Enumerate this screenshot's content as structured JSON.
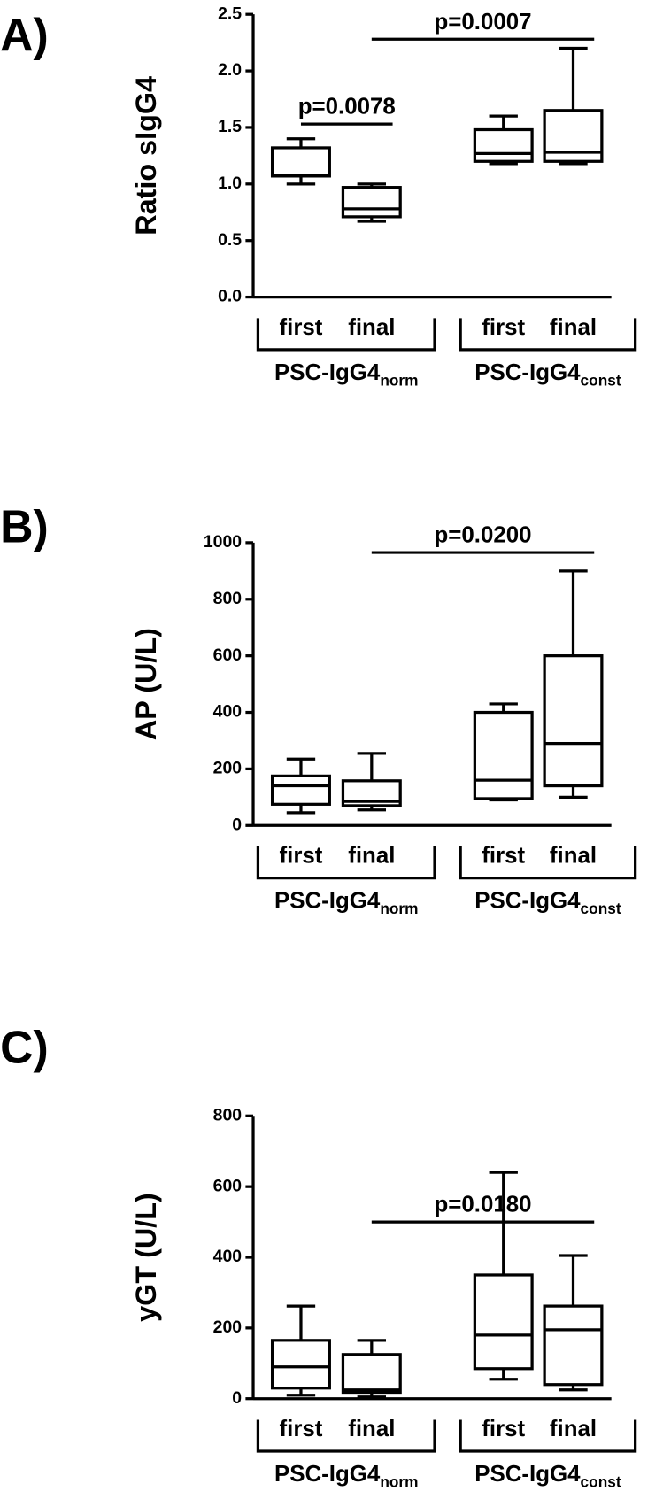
{
  "chart_data": [
    {
      "type": "box",
      "panel_label": "A)",
      "y_label": "Ratio sIgG4",
      "categories": [
        "first",
        "final",
        "first",
        "final"
      ],
      "groups": [
        {
          "label": "PSC-IgG4",
          "sub": "norm"
        },
        {
          "label": "PSC-IgG4",
          "sub": "const"
        }
      ],
      "boxes": [
        {
          "min": 1.0,
          "q1": 1.07,
          "median": 1.08,
          "q3": 1.32,
          "max": 1.4
        },
        {
          "min": 0.67,
          "q1": 0.71,
          "median": 0.78,
          "q3": 0.97,
          "max": 1.0
        },
        {
          "min": 1.18,
          "q1": 1.2,
          "median": 1.27,
          "q3": 1.48,
          "max": 1.6
        },
        {
          "min": 1.18,
          "q1": 1.2,
          "median": 1.28,
          "q3": 1.65,
          "max": 2.2
        }
      ],
      "ylim": [
        0,
        2.5
      ],
      "yticks": [
        {
          "value": 0,
          "label": "0.0"
        },
        0.5,
        {
          "value": 1,
          "label": "1.0"
        },
        1.5,
        {
          "value": 2,
          "label": "2.0"
        },
        2.5
      ],
      "annotations": [
        {
          "text": "p=0.0078",
          "from": 0,
          "to": 1,
          "y": 1.53
        },
        {
          "text": "p=0.0007",
          "from": 1,
          "to": 3,
          "y": 2.28
        }
      ]
    },
    {
      "type": "box",
      "panel_label": "B)",
      "y_label": "AP (U/L)",
      "categories": [
        "first",
        "final",
        "first",
        "final"
      ],
      "groups": [
        {
          "label": "PSC-IgG4",
          "sub": "norm"
        },
        {
          "label": "PSC-IgG4",
          "sub": "const"
        }
      ],
      "boxes": [
        {
          "min": 45,
          "q1": 75,
          "median": 140,
          "q3": 175,
          "max": 235
        },
        {
          "min": 55,
          "q1": 70,
          "median": 85,
          "q3": 158,
          "max": 255
        },
        {
          "min": 90,
          "q1": 95,
          "median": 160,
          "q3": 400,
          "max": 430
        },
        {
          "min": 100,
          "q1": 140,
          "median": 290,
          "q3": 600,
          "max": 900
        }
      ],
      "ylim": [
        0,
        1000
      ],
      "yticks": [
        0,
        200,
        400,
        600,
        800,
        1000
      ],
      "annotations": [
        {
          "text": "p=0.0200",
          "from": 1,
          "to": 3,
          "y": 965
        }
      ]
    },
    {
      "type": "box",
      "panel_label": "C)",
      "y_label": "yGT (U/L)",
      "categories": [
        "first",
        "final",
        "first",
        "final"
      ],
      "groups": [
        {
          "label": "PSC-IgG4",
          "sub": "norm"
        },
        {
          "label": "PSC-IgG4",
          "sub": "const"
        }
      ],
      "boxes": [
        {
          "min": 10,
          "q1": 30,
          "median": 90,
          "q3": 165,
          "max": 262
        },
        {
          "min": 5,
          "q1": 18,
          "median": 25,
          "q3": 125,
          "max": 165
        },
        {
          "min": 55,
          "q1": 85,
          "median": 180,
          "q3": 350,
          "max": 640
        },
        {
          "min": 25,
          "q1": 40,
          "median": 195,
          "q3": 262,
          "max": 405
        }
      ],
      "ylim": [
        0,
        800
      ],
      "yticks": [
        0,
        200,
        400,
        600,
        800
      ],
      "annotations": [
        {
          "text": "p=0.0180",
          "from": 1,
          "to": 3,
          "y": 500
        }
      ]
    }
  ]
}
